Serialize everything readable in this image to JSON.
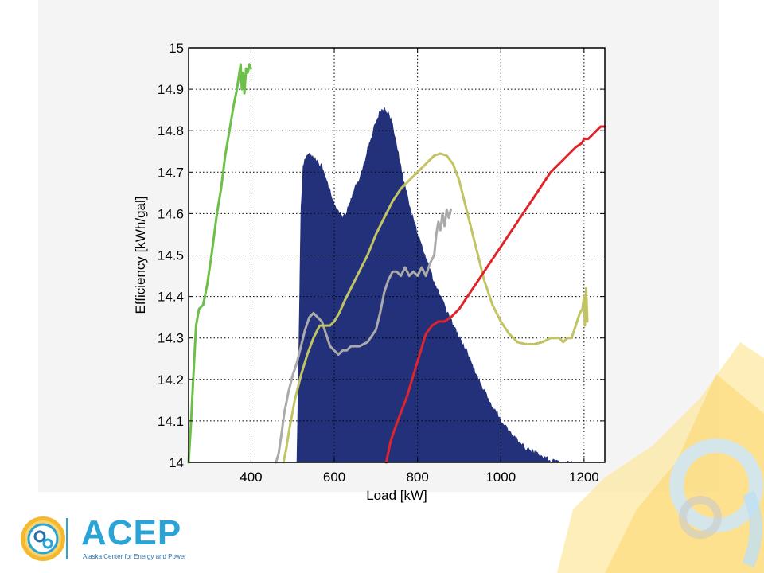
{
  "slide": {
    "logo_word": "ACEP",
    "logo_subtitle": "Alaska Center for Energy and Power",
    "logo_icon": "gear-sun-emblem-icon",
    "decor_icon": "gear-sun-decoration-icon"
  },
  "chart_data": {
    "type": "line",
    "xlabel": "Load [kW]",
    "ylabel": "Efficiency [kWh/gal]",
    "xlim": [
      250,
      1250
    ],
    "ylim": [
      14,
      15
    ],
    "xticks": [
      400,
      600,
      800,
      1000,
      1200
    ],
    "yticks": [
      14,
      14.1,
      14.2,
      14.3,
      14.4,
      14.5,
      14.6,
      14.7,
      14.8,
      14.9,
      15
    ],
    "grid": true,
    "histogram": {
      "name": "",
      "color": "#23307a",
      "outline": [
        [
          510,
          14
        ],
        [
          515,
          14.3
        ],
        [
          520,
          14.62
        ],
        [
          525,
          14.72
        ],
        [
          530,
          14.74
        ],
        [
          540,
          14.75
        ],
        [
          550,
          14.74
        ],
        [
          560,
          14.73
        ],
        [
          570,
          14.72
        ],
        [
          580,
          14.69
        ],
        [
          590,
          14.66
        ],
        [
          600,
          14.63
        ],
        [
          610,
          14.61
        ],
        [
          620,
          14.6
        ],
        [
          630,
          14.61
        ],
        [
          640,
          14.64
        ],
        [
          650,
          14.67
        ],
        [
          660,
          14.69
        ],
        [
          670,
          14.72
        ],
        [
          680,
          14.76
        ],
        [
          690,
          14.79
        ],
        [
          700,
          14.83
        ],
        [
          710,
          14.85
        ],
        [
          720,
          14.86
        ],
        [
          730,
          14.85
        ],
        [
          740,
          14.82
        ],
        [
          750,
          14.77
        ],
        [
          760,
          14.72
        ],
        [
          770,
          14.67
        ],
        [
          780,
          14.63
        ],
        [
          790,
          14.59
        ],
        [
          800,
          14.56
        ],
        [
          810,
          14.53
        ],
        [
          820,
          14.5
        ],
        [
          830,
          14.47
        ],
        [
          840,
          14.44
        ],
        [
          850,
          14.42
        ],
        [
          860,
          14.4
        ],
        [
          870,
          14.37
        ],
        [
          880,
          14.35
        ],
        [
          890,
          14.33
        ],
        [
          900,
          14.31
        ],
        [
          920,
          14.27
        ],
        [
          940,
          14.22
        ],
        [
          960,
          14.18
        ],
        [
          980,
          14.14
        ],
        [
          1000,
          14.11
        ],
        [
          1020,
          14.08
        ],
        [
          1040,
          14.06
        ],
        [
          1060,
          14.04
        ],
        [
          1080,
          14.03
        ],
        [
          1100,
          14.02
        ],
        [
          1120,
          14.01
        ],
        [
          1150,
          14.005
        ],
        [
          1190,
          14
        ]
      ]
    },
    "series": [
      {
        "name": "",
        "color": "#6cc04a",
        "points": [
          [
            250,
            14
          ],
          [
            255,
            14.08
          ],
          [
            262,
            14.22
          ],
          [
            268,
            14.33
          ],
          [
            275,
            14.37
          ],
          [
            285,
            14.38
          ],
          [
            295,
            14.43
          ],
          [
            305,
            14.5
          ],
          [
            318,
            14.6
          ],
          [
            328,
            14.66
          ],
          [
            338,
            14.74
          ],
          [
            348,
            14.8
          ],
          [
            358,
            14.86
          ],
          [
            366,
            14.9
          ],
          [
            372,
            14.94
          ],
          [
            375,
            14.96
          ],
          [
            378,
            14.9
          ],
          [
            381,
            14.94
          ],
          [
            384,
            14.89
          ],
          [
            388,
            14.95
          ],
          [
            392,
            14.94
          ],
          [
            396,
            14.96
          ],
          [
            400,
            14.95
          ]
        ]
      },
      {
        "name": "",
        "color": "#aaaaaa",
        "points": [
          [
            460,
            14
          ],
          [
            466,
            14.02
          ],
          [
            472,
            14.06
          ],
          [
            480,
            14.12
          ],
          [
            490,
            14.17
          ],
          [
            500,
            14.21
          ],
          [
            510,
            14.24
          ],
          [
            520,
            14.28
          ],
          [
            530,
            14.32
          ],
          [
            540,
            14.35
          ],
          [
            550,
            14.36
          ],
          [
            560,
            14.35
          ],
          [
            570,
            14.34
          ],
          [
            580,
            14.31
          ],
          [
            590,
            14.28
          ],
          [
            600,
            14.27
          ],
          [
            610,
            14.26
          ],
          [
            620,
            14.27
          ],
          [
            630,
            14.27
          ],
          [
            640,
            14.28
          ],
          [
            660,
            14.28
          ],
          [
            680,
            14.29
          ],
          [
            700,
            14.32
          ],
          [
            710,
            14.36
          ],
          [
            720,
            14.41
          ],
          [
            730,
            14.44
          ],
          [
            740,
            14.46
          ],
          [
            750,
            14.46
          ],
          [
            760,
            14.45
          ],
          [
            770,
            14.47
          ],
          [
            780,
            14.45
          ],
          [
            790,
            14.46
          ],
          [
            800,
            14.45
          ],
          [
            810,
            14.47
          ],
          [
            820,
            14.45
          ],
          [
            830,
            14.48
          ],
          [
            840,
            14.5
          ],
          [
            845,
            14.55
          ],
          [
            850,
            14.58
          ],
          [
            855,
            14.56
          ],
          [
            860,
            14.6
          ],
          [
            865,
            14.57
          ],
          [
            870,
            14.61
          ],
          [
            875,
            14.59
          ],
          [
            880,
            14.61
          ]
        ]
      },
      {
        "name": "",
        "color": "#c2c464",
        "points": [
          [
            478,
            14
          ],
          [
            484,
            14.03
          ],
          [
            492,
            14.08
          ],
          [
            505,
            14.15
          ],
          [
            520,
            14.21
          ],
          [
            535,
            14.26
          ],
          [
            550,
            14.3
          ],
          [
            565,
            14.33
          ],
          [
            580,
            14.33
          ],
          [
            590,
            14.33
          ],
          [
            600,
            14.34
          ],
          [
            612,
            14.36
          ],
          [
            625,
            14.39
          ],
          [
            640,
            14.42
          ],
          [
            660,
            14.46
          ],
          [
            680,
            14.5
          ],
          [
            700,
            14.55
          ],
          [
            720,
            14.59
          ],
          [
            740,
            14.63
          ],
          [
            760,
            14.66
          ],
          [
            780,
            14.68
          ],
          [
            800,
            14.7
          ],
          [
            820,
            14.72
          ],
          [
            840,
            14.74
          ],
          [
            855,
            14.745
          ],
          [
            870,
            14.74
          ],
          [
            885,
            14.72
          ],
          [
            900,
            14.68
          ],
          [
            920,
            14.6
          ],
          [
            940,
            14.52
          ],
          [
            960,
            14.44
          ],
          [
            980,
            14.38
          ],
          [
            1000,
            14.34
          ],
          [
            1020,
            14.31
          ],
          [
            1040,
            14.29
          ],
          [
            1060,
            14.285
          ],
          [
            1080,
            14.285
          ],
          [
            1100,
            14.29
          ],
          [
            1120,
            14.3
          ],
          [
            1140,
            14.3
          ],
          [
            1150,
            14.29
          ],
          [
            1160,
            14.3
          ],
          [
            1170,
            14.3
          ],
          [
            1180,
            14.33
          ],
          [
            1190,
            14.36
          ],
          [
            1196,
            14.37
          ],
          [
            1200,
            14.4
          ],
          [
            1202,
            14.33
          ],
          [
            1205,
            14.42
          ],
          [
            1208,
            14.34
          ]
        ]
      },
      {
        "name": "",
        "color": "#e0242c",
        "points": [
          [
            725,
            14
          ],
          [
            735,
            14.05
          ],
          [
            745,
            14.08
          ],
          [
            760,
            14.12
          ],
          [
            775,
            14.16
          ],
          [
            790,
            14.21
          ],
          [
            805,
            14.26
          ],
          [
            820,
            14.31
          ],
          [
            835,
            14.33
          ],
          [
            850,
            14.34
          ],
          [
            865,
            14.34
          ],
          [
            880,
            14.35
          ],
          [
            900,
            14.37
          ],
          [
            920,
            14.4
          ],
          [
            940,
            14.43
          ],
          [
            960,
            14.46
          ],
          [
            980,
            14.49
          ],
          [
            1000,
            14.52
          ],
          [
            1020,
            14.55
          ],
          [
            1040,
            14.58
          ],
          [
            1060,
            14.61
          ],
          [
            1080,
            14.64
          ],
          [
            1100,
            14.67
          ],
          [
            1120,
            14.7
          ],
          [
            1140,
            14.72
          ],
          [
            1160,
            14.74
          ],
          [
            1180,
            14.76
          ],
          [
            1195,
            14.77
          ],
          [
            1200,
            14.78
          ],
          [
            1210,
            14.78
          ],
          [
            1220,
            14.79
          ],
          [
            1230,
            14.8
          ],
          [
            1240,
            14.81
          ],
          [
            1250,
            14.81
          ]
        ]
      }
    ]
  }
}
